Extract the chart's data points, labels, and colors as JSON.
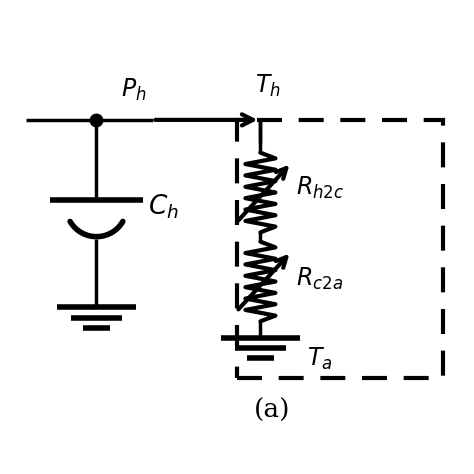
{
  "bg_color": "#ffffff",
  "line_color": "#000000",
  "line_width": 2.5,
  "fig_size": [
    4.74,
    4.74
  ],
  "dpi": 100,
  "title_label": "(a)",
  "label_Ph": "$P_h$",
  "label_Th": "$T_h$",
  "label_Ch": "$C_h$",
  "label_Rh2c": "$R_{h2c}$",
  "label_Rc2a": "$R_{c2a}$",
  "label_Ta": "$T_a$",
  "font_size": 17
}
